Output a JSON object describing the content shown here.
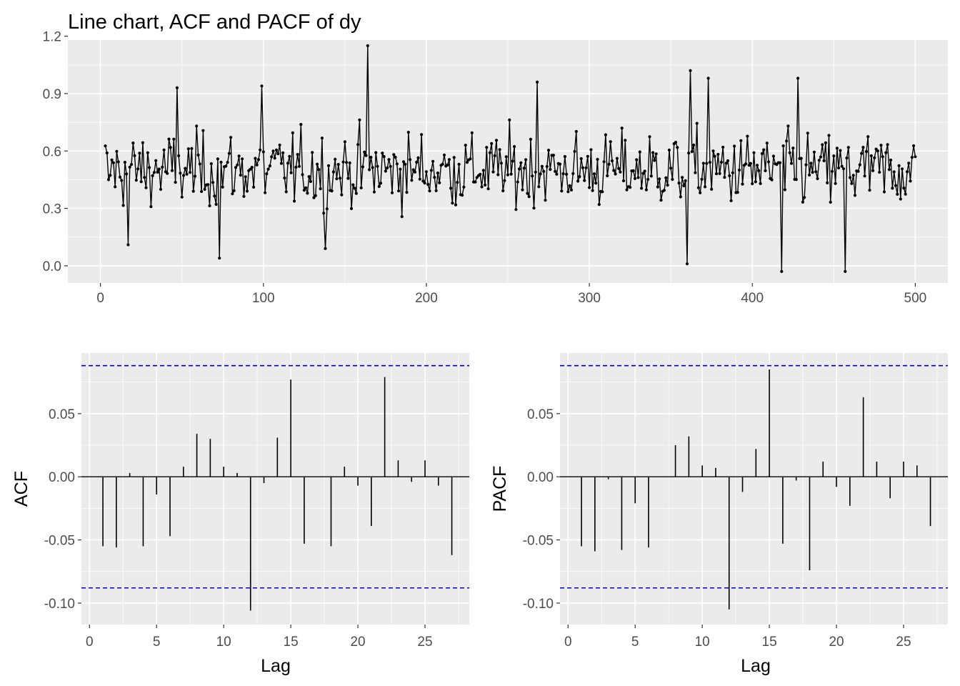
{
  "title": "Line chart, ACF and PACF of dy",
  "chart_data": [
    {
      "type": "line",
      "title": "Line chart, ACF and PACF of dy",
      "xlabel": "",
      "ylabel": "",
      "xlim": [
        -20,
        520
      ],
      "ylim": [
        -0.09,
        1.18
      ],
      "xticks": [
        "0",
        "100",
        "200",
        "300",
        "400",
        "500"
      ],
      "yticks": [
        "0.0",
        "0.3",
        "0.6",
        "0.9",
        "1.2"
      ],
      "markers": true,
      "grid": true,
      "line_color": "#000000",
      "panel_color": "#ebebeb",
      "n": 498,
      "x_start": 3,
      "key_points": [
        {
          "x": 5,
          "y": 0.45
        },
        {
          "x": 17,
          "y": 0.11
        },
        {
          "x": 47,
          "y": 0.93
        },
        {
          "x": 73,
          "y": 0.04
        },
        {
          "x": 99,
          "y": 0.94
        },
        {
          "x": 138,
          "y": 0.09
        },
        {
          "x": 164,
          "y": 1.15
        },
        {
          "x": 268,
          "y": 0.96
        },
        {
          "x": 360,
          "y": 0.01
        },
        {
          "x": 362,
          "y": 1.02
        },
        {
          "x": 373,
          "y": 0.98
        },
        {
          "x": 418,
          "y": -0.03
        },
        {
          "x": 428,
          "y": 0.98
        },
        {
          "x": 457,
          "y": -0.03
        },
        {
          "x": 500,
          "y": 0.57
        }
      ]
    },
    {
      "type": "bar",
      "title": "",
      "xlabel": "Lag",
      "ylabel": "ACF",
      "xlim": [
        -0.6,
        28.3
      ],
      "ylim": [
        -0.117,
        0.098
      ],
      "xticks": [
        "0",
        "5",
        "10",
        "15",
        "20",
        "25"
      ],
      "yticks": [
        "-0.10",
        "-0.05",
        "0.00",
        "0.05"
      ],
      "conf_limit": 0.088,
      "conf_color": "#0000cc",
      "lags": [
        1,
        2,
        3,
        4,
        5,
        6,
        7,
        8,
        9,
        10,
        11,
        12,
        13,
        14,
        15,
        16,
        17,
        18,
        19,
        20,
        21,
        22,
        23,
        24,
        25,
        26,
        27
      ],
      "values": [
        -0.055,
        -0.056,
        0.003,
        -0.055,
        -0.014,
        -0.047,
        0.008,
        0.034,
        0.03,
        0.008,
        0.003,
        -0.106,
        -0.005,
        0.031,
        0.077,
        -0.053,
        0.0,
        -0.055,
        0.008,
        -0.007,
        -0.039,
        0.079,
        0.013,
        -0.004,
        0.013,
        -0.007,
        -0.062
      ]
    },
    {
      "type": "bar",
      "title": "",
      "xlabel": "Lag",
      "ylabel": "PACF",
      "xlim": [
        -0.6,
        28.3
      ],
      "ylim": [
        -0.117,
        0.098
      ],
      "xticks": [
        "0",
        "5",
        "10",
        "15",
        "20",
        "25"
      ],
      "yticks": [
        "-0.10",
        "-0.05",
        "0.00",
        "0.05"
      ],
      "conf_limit": 0.088,
      "conf_color": "#0000cc",
      "lags": [
        1,
        2,
        3,
        4,
        5,
        6,
        7,
        8,
        9,
        10,
        11,
        12,
        13,
        14,
        15,
        16,
        17,
        18,
        19,
        20,
        21,
        22,
        23,
        24,
        25,
        26,
        27
      ],
      "values": [
        -0.055,
        -0.059,
        -0.002,
        -0.058,
        -0.021,
        -0.056,
        0.0,
        0.025,
        0.032,
        0.009,
        0.007,
        -0.105,
        -0.012,
        0.022,
        0.085,
        -0.053,
        -0.003,
        -0.074,
        0.012,
        -0.008,
        -0.023,
        0.063,
        0.012,
        -0.017,
        0.012,
        0.009,
        -0.039
      ]
    }
  ]
}
